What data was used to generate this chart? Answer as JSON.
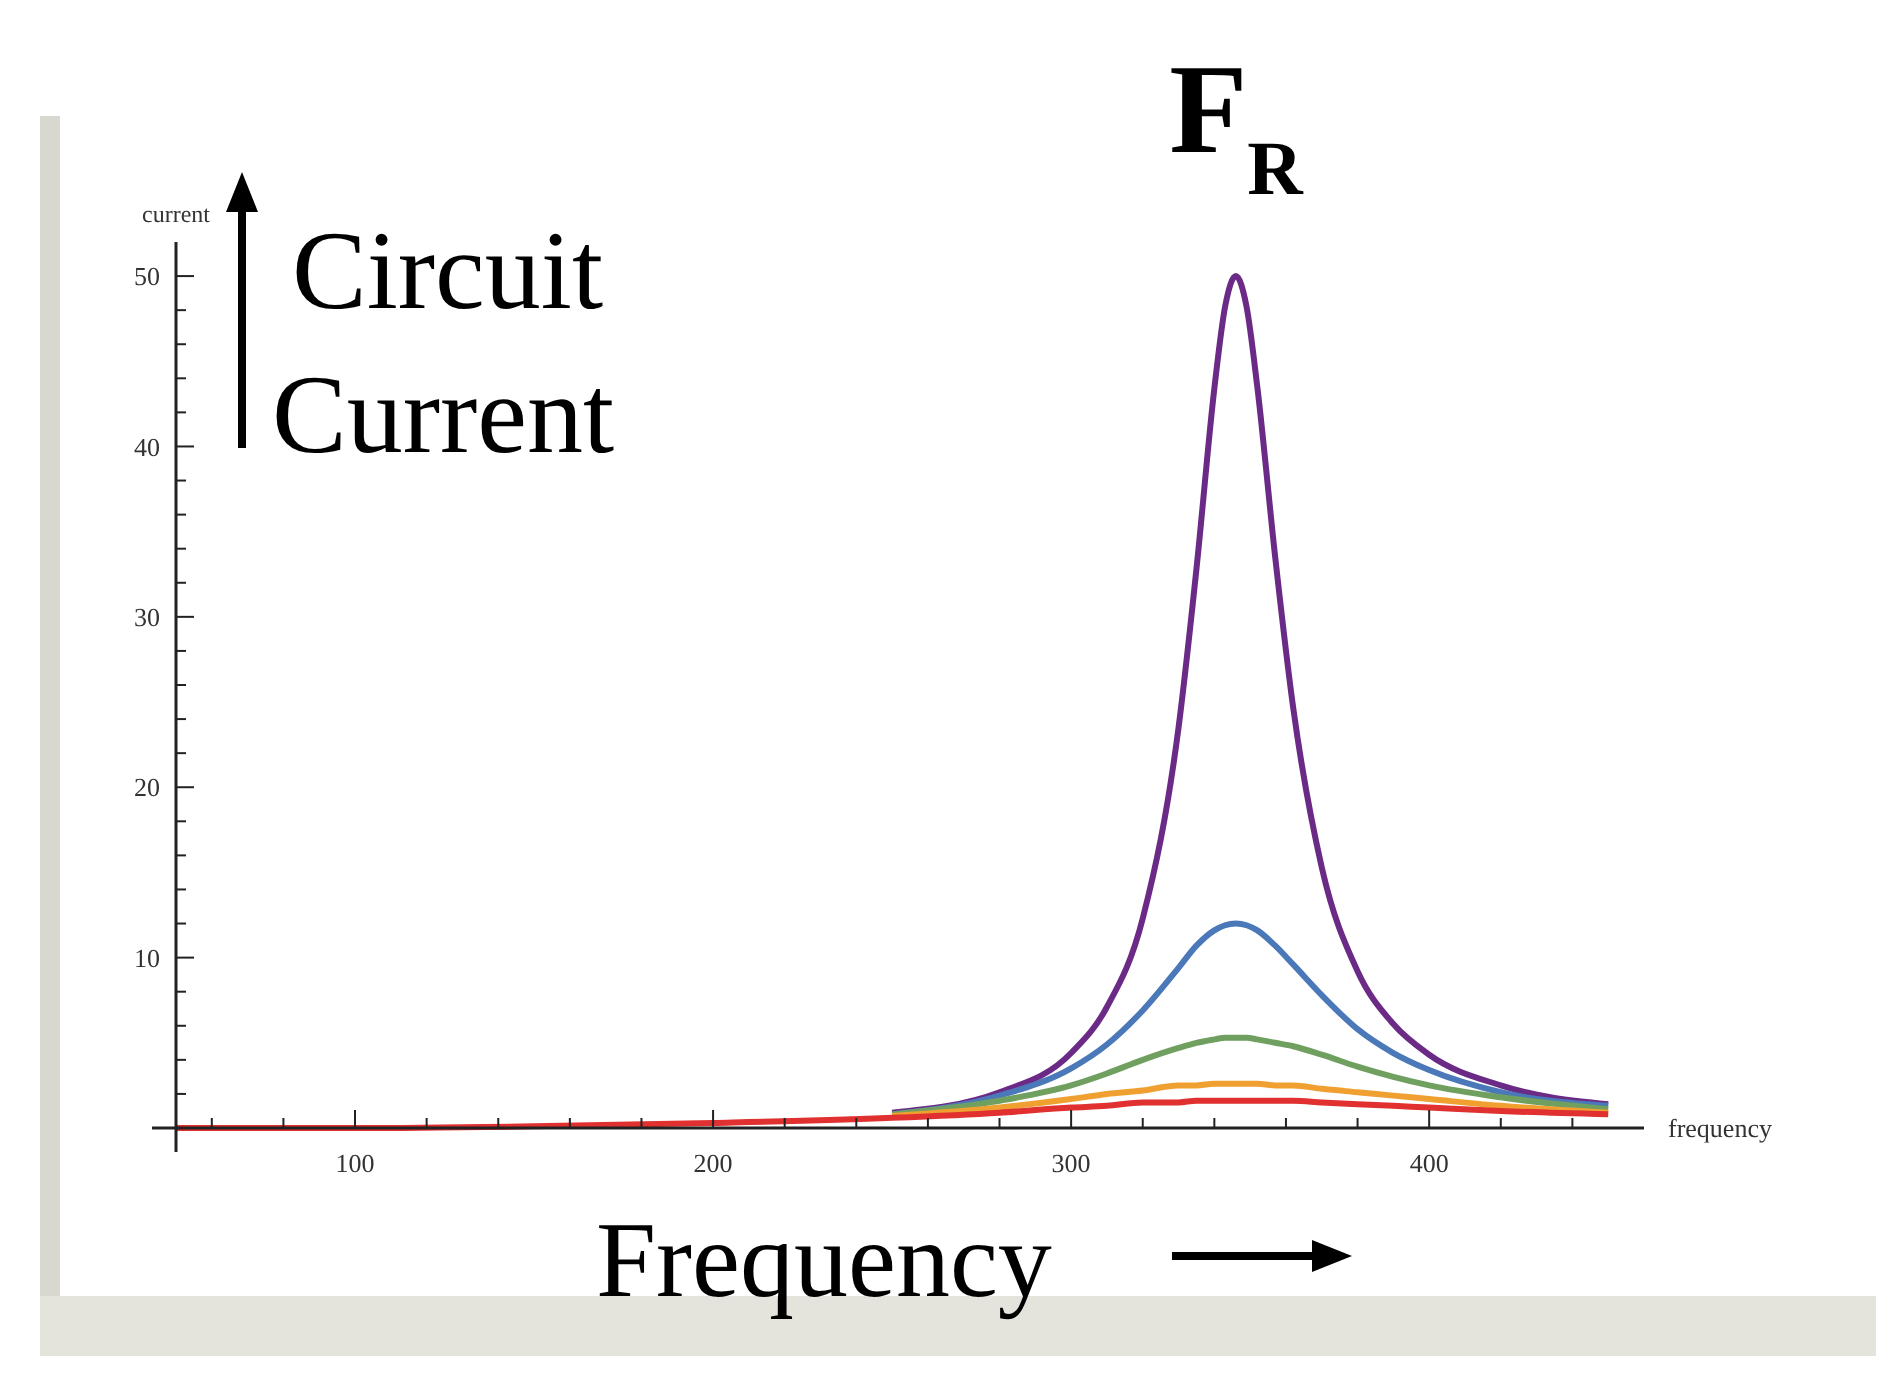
{
  "chart_data": {
    "type": "line",
    "xlabel": "frequency",
    "ylabel": "current",
    "annotations": [
      "F$_{R}$",
      "Circuit Current",
      "Frequency"
    ],
    "x": [
      50,
      100,
      150,
      200,
      250,
      280,
      300,
      310,
      320,
      330,
      335,
      340,
      343,
      346,
      349,
      352,
      357,
      362,
      370,
      380,
      390,
      400,
      420,
      450
    ],
    "series": [
      {
        "color": "#6a2a86",
        "values": [
          null,
          null,
          null,
          null,
          0.9,
          2.1,
          4.4,
          7.1,
          12.3,
          23.5,
          32.8,
          43.4,
          48.2,
          50,
          48.2,
          43.5,
          33.5,
          24.7,
          15.3,
          9.2,
          6.1,
          4.3,
          2.5,
          1.4
        ]
      },
      {
        "color": "#4a78b8",
        "values": [
          null,
          null,
          null,
          null,
          0.8,
          1.9,
          3.5,
          4.9,
          6.9,
          9.4,
          10.7,
          11.6,
          11.9,
          12,
          11.9,
          11.6,
          10.7,
          9.6,
          7.8,
          5.8,
          4.4,
          3.4,
          2.1,
          1.3
        ]
      },
      {
        "color": "#6fa060",
        "values": [
          null,
          null,
          null,
          null,
          0.8,
          1.6,
          2.5,
          3.2,
          4,
          4.7,
          5,
          5.2,
          5.3,
          5.3,
          5.3,
          5.2,
          5,
          4.8,
          4.3,
          3.6,
          3,
          2.5,
          1.8,
          1.1
        ]
      },
      {
        "color": "#f0a030",
        "values": [
          null,
          null,
          null,
          null,
          0.7,
          1.2,
          1.7,
          2,
          2.2,
          2.5,
          2.5,
          2.6,
          2.6,
          2.6,
          2.6,
          2.6,
          2.5,
          2.5,
          2.3,
          2.1,
          1.9,
          1.7,
          1.3,
          0.9
        ]
      },
      {
        "color": "#e03030",
        "values": [
          0,
          0,
          0.1,
          0.3,
          0.6,
          0.9,
          1.2,
          1.3,
          1.5,
          1.5,
          1.6,
          1.6,
          1.6,
          1.6,
          1.6,
          1.6,
          1.6,
          1.6,
          1.5,
          1.4,
          1.3,
          1.2,
          1,
          0.8
        ]
      }
    ],
    "xlim": [
      50,
      460
    ],
    "ylim": [
      0,
      52
    ],
    "xticks": [
      {
        "value": 60,
        "label": null
      },
      {
        "value": 80,
        "label": null
      },
      100,
      {
        "value": 120,
        "label": null
      },
      {
        "value": 140,
        "label": null
      },
      {
        "value": 160,
        "label": null
      },
      {
        "value": 180,
        "label": null
      },
      200,
      {
        "value": 220,
        "label": null
      },
      {
        "value": 240,
        "label": null
      },
      {
        "value": 260,
        "label": null
      },
      {
        "value": 280,
        "label": null
      },
      300,
      {
        "value": 320,
        "label": null
      },
      {
        "value": 340,
        "label": null
      },
      {
        "value": 360,
        "label": null
      },
      {
        "value": 380,
        "label": null
      },
      400,
      {
        "value": 420,
        "label": null
      },
      {
        "value": 440,
        "label": null
      }
    ],
    "yticks": [
      {
        "value": 2,
        "label": null
      },
      {
        "value": 4,
        "label": null
      },
      {
        "value": 6,
        "label": null
      },
      {
        "value": 8,
        "label": null
      },
      10,
      {
        "value": 12,
        "label": null
      },
      {
        "value": 14,
        "label": null
      },
      {
        "value": 16,
        "label": null
      },
      {
        "value": 18,
        "label": null
      },
      20,
      {
        "value": 22,
        "label": null
      },
      {
        "value": 24,
        "label": null
      },
      {
        "value": 26,
        "label": null
      },
      {
        "value": 28,
        "label": null
      },
      30,
      {
        "value": 32,
        "label": null
      },
      {
        "value": 34,
        "label": null
      },
      {
        "value": 36,
        "label": null
      },
      {
        "value": 38,
        "label": null
      },
      40,
      {
        "value": 42,
        "label": null
      },
      {
        "value": 44,
        "label": null
      },
      {
        "value": 46,
        "label": null
      },
      {
        "value": 48,
        "label": null
      },
      50
    ],
    "grid": false,
    "marker": "none",
    "line_style": "solid"
  }
}
